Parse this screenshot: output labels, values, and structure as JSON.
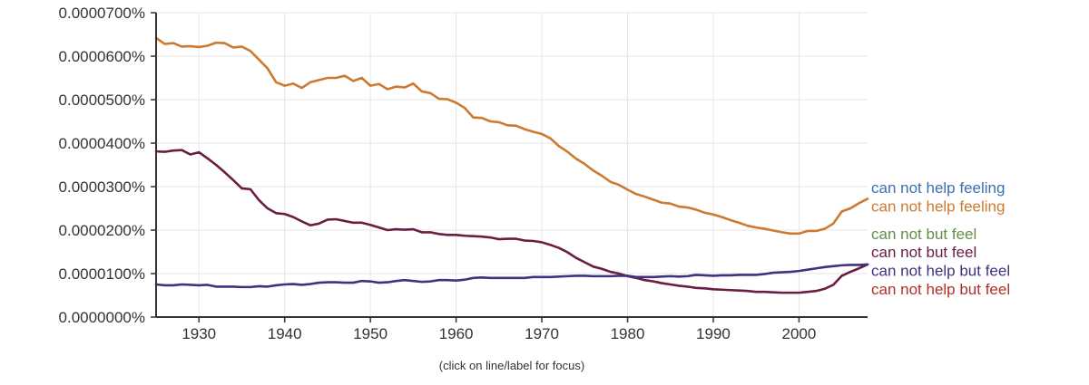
{
  "chart_data": {
    "type": "line",
    "hint": "(click on line/label for focus)",
    "xlim": [
      1925,
      2008
    ],
    "ylim": [
      0,
      7e-06
    ],
    "x_ticks": [
      {
        "value": 1930,
        "label": "1930"
      },
      {
        "value": 1940,
        "label": "1940"
      },
      {
        "value": 1950,
        "label": "1950"
      },
      {
        "value": 1960,
        "label": "1960"
      },
      {
        "value": 1970,
        "label": "1970"
      },
      {
        "value": 1980,
        "label": "1980"
      },
      {
        "value": 1990,
        "label": "1990"
      },
      {
        "value": 2000,
        "label": "2000"
      }
    ],
    "y_ticks": [
      {
        "value": 0,
        "label": "0.0000000%"
      },
      {
        "value": 1e-06,
        "label": "0.0000100%"
      },
      {
        "value": 2e-06,
        "label": "0.0000200%"
      },
      {
        "value": 3e-06,
        "label": "0.0000300%"
      },
      {
        "value": 4e-06,
        "label": "0.0000400%"
      },
      {
        "value": 5e-06,
        "label": "0.0000500%"
      },
      {
        "value": 6e-06,
        "label": "0.0000600%"
      },
      {
        "value": 7e-06,
        "label": "0.0000700%"
      }
    ],
    "legend": [
      {
        "name": "can not help feeling",
        "color": "#3e6fb0"
      },
      {
        "name": "can not help feeling",
        "color": "#cc7a30"
      },
      {
        "name": "can not but feel",
        "color": "#5f8f48"
      },
      {
        "name": "can not but feel",
        "color": "#6b1c42"
      },
      {
        "name": "can not help but feel",
        "color": "#3d3380"
      },
      {
        "name": "can not help but feel",
        "color": "#b03028"
      }
    ],
    "series": [
      {
        "name": "can not help feeling",
        "color": "#cc7a30",
        "points": [
          [
            1925,
            6.42e-06
          ],
          [
            1926,
            6.28e-06
          ],
          [
            1927,
            6.3e-06
          ],
          [
            1928,
            6.22e-06
          ],
          [
            1929,
            6.23e-06
          ],
          [
            1930,
            6.21e-06
          ],
          [
            1931,
            6.24e-06
          ],
          [
            1932,
            6.31e-06
          ],
          [
            1933,
            6.3e-06
          ],
          [
            1934,
            6.2e-06
          ],
          [
            1935,
            6.22e-06
          ],
          [
            1936,
            6.12e-06
          ],
          [
            1937,
            5.92e-06
          ],
          [
            1938,
            5.72e-06
          ],
          [
            1939,
            5.4e-06
          ],
          [
            1940,
            5.32e-06
          ],
          [
            1941,
            5.37e-06
          ],
          [
            1942,
            5.27e-06
          ],
          [
            1943,
            5.4e-06
          ],
          [
            1944,
            5.45e-06
          ],
          [
            1945,
            5.5e-06
          ],
          [
            1946,
            5.5e-06
          ],
          [
            1947,
            5.55e-06
          ],
          [
            1948,
            5.43e-06
          ],
          [
            1949,
            5.5e-06
          ],
          [
            1950,
            5.32e-06
          ],
          [
            1951,
            5.36e-06
          ],
          [
            1952,
            5.24e-06
          ],
          [
            1953,
            5.3e-06
          ],
          [
            1954,
            5.28e-06
          ],
          [
            1955,
            5.37e-06
          ],
          [
            1956,
            5.19e-06
          ],
          [
            1957,
            5.15e-06
          ],
          [
            1958,
            5.02e-06
          ],
          [
            1959,
            5.01e-06
          ],
          [
            1960,
            4.93e-06
          ],
          [
            1961,
            4.81e-06
          ],
          [
            1962,
            4.59e-06
          ],
          [
            1963,
            4.58e-06
          ],
          [
            1964,
            4.5e-06
          ],
          [
            1965,
            4.48e-06
          ],
          [
            1966,
            4.41e-06
          ],
          [
            1967,
            4.4e-06
          ],
          [
            1968,
            4.32e-06
          ],
          [
            1969,
            4.26e-06
          ],
          [
            1970,
            4.21e-06
          ],
          [
            1971,
            4.11e-06
          ],
          [
            1972,
            3.93e-06
          ],
          [
            1973,
            3.8e-06
          ],
          [
            1974,
            3.64e-06
          ],
          [
            1975,
            3.52e-06
          ],
          [
            1976,
            3.37e-06
          ],
          [
            1977,
            3.25e-06
          ],
          [
            1978,
            3.11e-06
          ],
          [
            1979,
            3.04e-06
          ],
          [
            1980,
            2.93e-06
          ],
          [
            1981,
            2.83e-06
          ],
          [
            1982,
            2.77e-06
          ],
          [
            1983,
            2.7e-06
          ],
          [
            1984,
            2.63e-06
          ],
          [
            1985,
            2.61e-06
          ],
          [
            1986,
            2.54e-06
          ],
          [
            1987,
            2.52e-06
          ],
          [
            1988,
            2.47e-06
          ],
          [
            1989,
            2.4e-06
          ],
          [
            1990,
            2.36e-06
          ],
          [
            1991,
            2.3e-06
          ],
          [
            1992,
            2.23e-06
          ],
          [
            1993,
            2.17e-06
          ],
          [
            1994,
            2.1e-06
          ],
          [
            1995,
            2.06e-06
          ],
          [
            1996,
            2.03e-06
          ],
          [
            1997,
            1.99e-06
          ],
          [
            1998,
            1.95e-06
          ],
          [
            1999,
            1.92e-06
          ],
          [
            2000,
            1.92e-06
          ],
          [
            2001,
            1.98e-06
          ],
          [
            2002,
            1.98e-06
          ],
          [
            2003,
            2.03e-06
          ],
          [
            2004,
            2.15e-06
          ],
          [
            2005,
            2.43e-06
          ],
          [
            2006,
            2.5e-06
          ],
          [
            2007,
            2.62e-06
          ],
          [
            2008,
            2.72e-06
          ]
        ]
      },
      {
        "name": "can not but feel",
        "color": "#6b1c42",
        "points": [
          [
            1925,
            3.81e-06
          ],
          [
            1926,
            3.8e-06
          ],
          [
            1927,
            3.83e-06
          ],
          [
            1928,
            3.84e-06
          ],
          [
            1929,
            3.74e-06
          ],
          [
            1930,
            3.79e-06
          ],
          [
            1931,
            3.65e-06
          ],
          [
            1932,
            3.5e-06
          ],
          [
            1933,
            3.33e-06
          ],
          [
            1934,
            3.15e-06
          ],
          [
            1935,
            2.96e-06
          ],
          [
            1936,
            2.94e-06
          ],
          [
            1937,
            2.69e-06
          ],
          [
            1938,
            2.5e-06
          ],
          [
            1939,
            2.39e-06
          ],
          [
            1940,
            2.37e-06
          ],
          [
            1941,
            2.3e-06
          ],
          [
            1942,
            2.2e-06
          ],
          [
            1943,
            2.11e-06
          ],
          [
            1944,
            2.15e-06
          ],
          [
            1945,
            2.24e-06
          ],
          [
            1946,
            2.25e-06
          ],
          [
            1947,
            2.21e-06
          ],
          [
            1948,
            2.17e-06
          ],
          [
            1949,
            2.17e-06
          ],
          [
            1950,
            2.12e-06
          ],
          [
            1951,
            2.06e-06
          ],
          [
            1952,
            2e-06
          ],
          [
            1953,
            2.02e-06
          ],
          [
            1954,
            2.01e-06
          ],
          [
            1955,
            2.02e-06
          ],
          [
            1956,
            1.95e-06
          ],
          [
            1957,
            1.95e-06
          ],
          [
            1958,
            1.91e-06
          ],
          [
            1959,
            1.89e-06
          ],
          [
            1960,
            1.89e-06
          ],
          [
            1961,
            1.87e-06
          ],
          [
            1962,
            1.86e-06
          ],
          [
            1963,
            1.85e-06
          ],
          [
            1964,
            1.83e-06
          ],
          [
            1965,
            1.79e-06
          ],
          [
            1966,
            1.8e-06
          ],
          [
            1967,
            1.8e-06
          ],
          [
            1968,
            1.76e-06
          ],
          [
            1969,
            1.75e-06
          ],
          [
            1970,
            1.72e-06
          ],
          [
            1971,
            1.66e-06
          ],
          [
            1972,
            1.59e-06
          ],
          [
            1973,
            1.49e-06
          ],
          [
            1974,
            1.36e-06
          ],
          [
            1975,
            1.26e-06
          ],
          [
            1976,
            1.16e-06
          ],
          [
            1977,
            1.11e-06
          ],
          [
            1978,
            1.04e-06
          ],
          [
            1979,
            1e-06
          ],
          [
            1980,
            9.4e-07
          ],
          [
            1981,
            9e-07
          ],
          [
            1982,
            8.5e-07
          ],
          [
            1983,
            8.2e-07
          ],
          [
            1984,
            7.8e-07
          ],
          [
            1985,
            7.5e-07
          ],
          [
            1986,
            7.2e-07
          ],
          [
            1987,
            7e-07
          ],
          [
            1988,
            6.7e-07
          ],
          [
            1989,
            6.6e-07
          ],
          [
            1990,
            6.4e-07
          ],
          [
            1991,
            6.3e-07
          ],
          [
            1992,
            6.2e-07
          ],
          [
            1993,
            6.1e-07
          ],
          [
            1994,
            6e-07
          ],
          [
            1995,
            5.8e-07
          ],
          [
            1996,
            5.8e-07
          ],
          [
            1997,
            5.7e-07
          ],
          [
            1998,
            5.6e-07
          ],
          [
            1999,
            5.6e-07
          ],
          [
            2000,
            5.6e-07
          ],
          [
            2001,
            5.8e-07
          ],
          [
            2002,
            6e-07
          ],
          [
            2003,
            6.5e-07
          ],
          [
            2004,
            7.4e-07
          ],
          [
            2005,
            9.5e-07
          ],
          [
            2006,
            1.04e-06
          ],
          [
            2007,
            1.12e-06
          ],
          [
            2008,
            1.21e-06
          ]
        ]
      },
      {
        "name": "can not help but feel",
        "color": "#3d3380",
        "points": [
          [
            1925,
            7.5e-07
          ],
          [
            1926,
            7.3e-07
          ],
          [
            1927,
            7.3e-07
          ],
          [
            1928,
            7.5e-07
          ],
          [
            1929,
            7.4e-07
          ],
          [
            1930,
            7.3e-07
          ],
          [
            1931,
            7.4e-07
          ],
          [
            1932,
            7e-07
          ],
          [
            1933,
            7e-07
          ],
          [
            1934,
            7e-07
          ],
          [
            1935,
            6.9e-07
          ],
          [
            1936,
            6.9e-07
          ],
          [
            1937,
            7.1e-07
          ],
          [
            1938,
            7e-07
          ],
          [
            1939,
            7.3e-07
          ],
          [
            1940,
            7.5e-07
          ],
          [
            1941,
            7.6e-07
          ],
          [
            1942,
            7.4e-07
          ],
          [
            1943,
            7.6e-07
          ],
          [
            1944,
            7.9e-07
          ],
          [
            1945,
            8e-07
          ],
          [
            1946,
            8e-07
          ],
          [
            1947,
            7.9e-07
          ],
          [
            1948,
            7.9e-07
          ],
          [
            1949,
            8.3e-07
          ],
          [
            1950,
            8.2e-07
          ],
          [
            1951,
            7.9e-07
          ],
          [
            1952,
            8e-07
          ],
          [
            1953,
            8.3e-07
          ],
          [
            1954,
            8.5e-07
          ],
          [
            1955,
            8.3e-07
          ],
          [
            1956,
            8.1e-07
          ],
          [
            1957,
            8.2e-07
          ],
          [
            1958,
            8.5e-07
          ],
          [
            1959,
            8.5e-07
          ],
          [
            1960,
            8.4e-07
          ],
          [
            1961,
            8.6e-07
          ],
          [
            1962,
            9e-07
          ],
          [
            1963,
            9.1e-07
          ],
          [
            1964,
            9e-07
          ],
          [
            1965,
            9e-07
          ],
          [
            1966,
            9e-07
          ],
          [
            1967,
            9e-07
          ],
          [
            1968,
            9e-07
          ],
          [
            1969,
            9.2e-07
          ],
          [
            1970,
            9.2e-07
          ],
          [
            1971,
            9.2e-07
          ],
          [
            1972,
            9.3e-07
          ],
          [
            1973,
            9.4e-07
          ],
          [
            1974,
            9.5e-07
          ],
          [
            1975,
            9.5e-07
          ],
          [
            1976,
            9.4e-07
          ],
          [
            1977,
            9.4e-07
          ],
          [
            1978,
            9.4e-07
          ],
          [
            1979,
            9.5e-07
          ],
          [
            1980,
            9.5e-07
          ],
          [
            1981,
            9.2e-07
          ],
          [
            1982,
            9.2e-07
          ],
          [
            1983,
            9.2e-07
          ],
          [
            1984,
            9.3e-07
          ],
          [
            1985,
            9.4e-07
          ],
          [
            1986,
            9.3e-07
          ],
          [
            1987,
            9.4e-07
          ],
          [
            1988,
            9.7e-07
          ],
          [
            1989,
            9.6e-07
          ],
          [
            1990,
            9.5e-07
          ],
          [
            1991,
            9.6e-07
          ],
          [
            1992,
            9.6e-07
          ],
          [
            1993,
            9.7e-07
          ],
          [
            1994,
            9.7e-07
          ],
          [
            1995,
            9.7e-07
          ],
          [
            1996,
            9.9e-07
          ],
          [
            1997,
            1.02e-06
          ],
          [
            1998,
            1.03e-06
          ],
          [
            1999,
            1.04e-06
          ],
          [
            2000,
            1.06e-06
          ],
          [
            2001,
            1.09e-06
          ],
          [
            2002,
            1.12e-06
          ],
          [
            2003,
            1.15e-06
          ],
          [
            2004,
            1.17e-06
          ],
          [
            2005,
            1.19e-06
          ],
          [
            2006,
            1.2e-06
          ],
          [
            2007,
            1.2e-06
          ],
          [
            2008,
            1.21e-06
          ]
        ]
      }
    ]
  }
}
